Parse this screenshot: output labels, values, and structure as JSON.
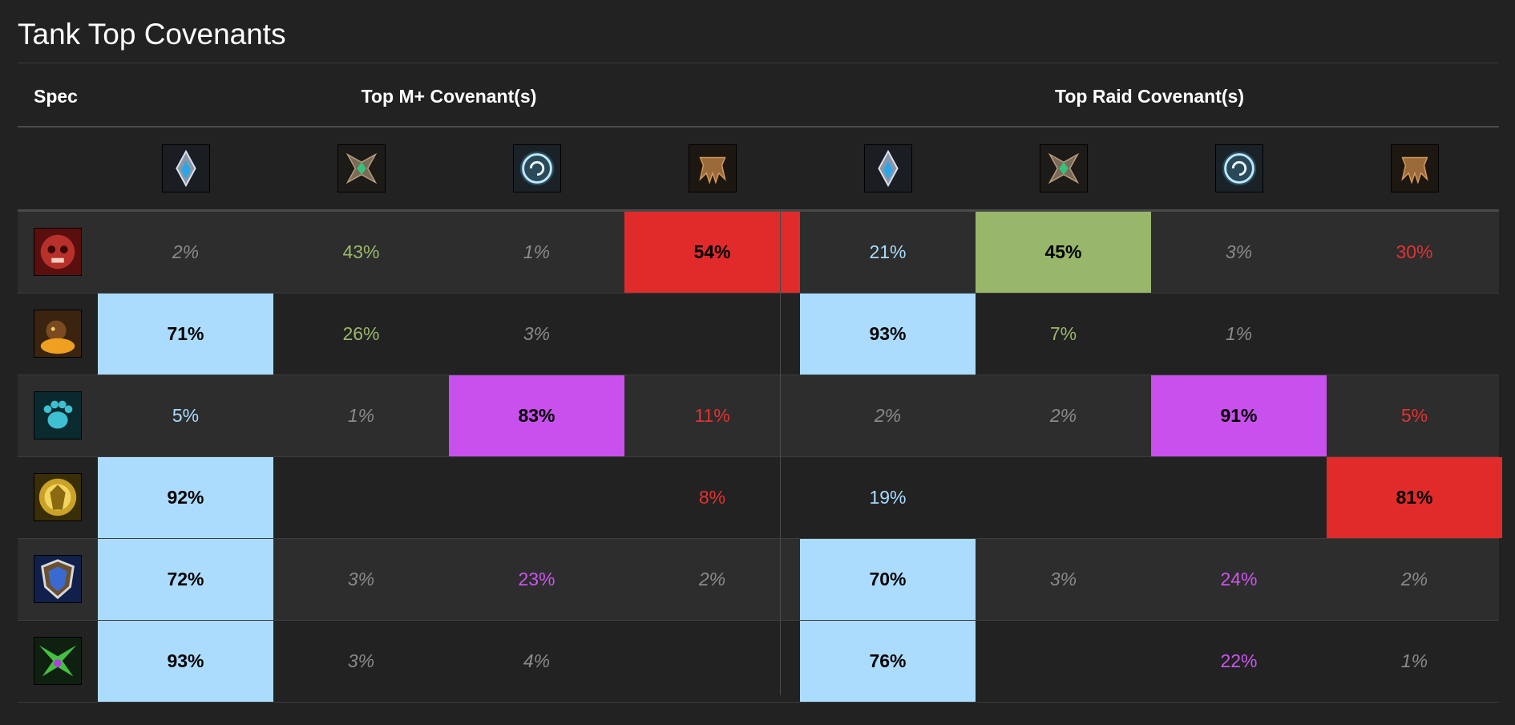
{
  "title": "Tank Top Covenants",
  "header": {
    "spec": "Spec",
    "mplus": "Top M+ Covenant(s)",
    "raid": "Top Raid Covenant(s)"
  },
  "colors": {
    "kyrian": "#acdcfd",
    "necrolord": "#99b76a",
    "night_fae": "#c850ec",
    "venthyr": "#e12b2b",
    "low": "#8a8a8a"
  },
  "covenants": [
    "kyrian-icon",
    "necrolord-icon",
    "night-fae-icon",
    "venthyr-icon"
  ],
  "rows": [
    {
      "spec_icon": "blood-death-knight-icon",
      "cells": [
        {
          "v": "2%",
          "c": "low"
        },
        {
          "v": "43%",
          "c": "necrolord"
        },
        {
          "v": "1%",
          "c": "low"
        },
        {
          "v": "54%",
          "c": "venthyr",
          "f": true
        },
        {
          "v": "21%",
          "c": "kyrian"
        },
        {
          "v": "45%",
          "c": "necrolord",
          "f": true
        },
        {
          "v": "3%",
          "c": "low"
        },
        {
          "v": "30%",
          "c": "venthyr"
        }
      ]
    },
    {
      "spec_icon": "brewmaster-monk-icon",
      "cells": [
        {
          "v": "71%",
          "c": "kyrian",
          "f": true
        },
        {
          "v": "26%",
          "c": "necrolord"
        },
        {
          "v": "3%",
          "c": "low"
        },
        {
          "v": "",
          "c": ""
        },
        {
          "v": "93%",
          "c": "kyrian",
          "f": true
        },
        {
          "v": "7%",
          "c": "necrolord"
        },
        {
          "v": "1%",
          "c": "low"
        },
        {
          "v": "",
          "c": ""
        }
      ]
    },
    {
      "spec_icon": "guardian-druid-icon",
      "cells": [
        {
          "v": "5%",
          "c": "kyrian"
        },
        {
          "v": "1%",
          "c": "low"
        },
        {
          "v": "83%",
          "c": "nightfae",
          "f": true
        },
        {
          "v": "11%",
          "c": "venthyr"
        },
        {
          "v": "2%",
          "c": "low"
        },
        {
          "v": "2%",
          "c": "low"
        },
        {
          "v": "91%",
          "c": "nightfae",
          "f": true
        },
        {
          "v": "5%",
          "c": "venthyr"
        }
      ]
    },
    {
      "spec_icon": "protection-paladin-icon",
      "cells": [
        {
          "v": "92%",
          "c": "kyrian",
          "f": true
        },
        {
          "v": "",
          "c": ""
        },
        {
          "v": "",
          "c": ""
        },
        {
          "v": "8%",
          "c": "venthyr"
        },
        {
          "v": "19%",
          "c": "kyrian"
        },
        {
          "v": "",
          "c": ""
        },
        {
          "v": "",
          "c": ""
        },
        {
          "v": "81%",
          "c": "venthyr",
          "f": true
        }
      ]
    },
    {
      "spec_icon": "protection-warrior-icon",
      "cells": [
        {
          "v": "72%",
          "c": "kyrian",
          "f": true
        },
        {
          "v": "3%",
          "c": "low"
        },
        {
          "v": "23%",
          "c": "nightfae"
        },
        {
          "v": "2%",
          "c": "low"
        },
        {
          "v": "70%",
          "c": "kyrian",
          "f": true
        },
        {
          "v": "3%",
          "c": "low"
        },
        {
          "v": "24%",
          "c": "nightfae"
        },
        {
          "v": "2%",
          "c": "low"
        }
      ]
    },
    {
      "spec_icon": "vengeance-demon-hunter-icon",
      "cells": [
        {
          "v": "93%",
          "c": "kyrian",
          "f": true
        },
        {
          "v": "3%",
          "c": "low"
        },
        {
          "v": "4%",
          "c": "low"
        },
        {
          "v": "",
          "c": ""
        },
        {
          "v": "76%",
          "c": "kyrian",
          "f": true
        },
        {
          "v": "",
          "c": ""
        },
        {
          "v": "22%",
          "c": "nightfae"
        },
        {
          "v": "1%",
          "c": "low"
        }
      ]
    }
  ]
}
